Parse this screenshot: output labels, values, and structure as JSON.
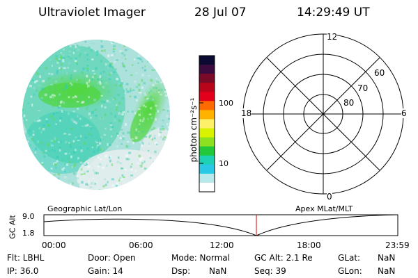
{
  "header": {
    "title": "Ultraviolet Imager",
    "date": "28 Jul 07",
    "time": "14:29:49 UT"
  },
  "colorbar": {
    "unit_label": "photon cm⁻²s⁻¹",
    "ticks": [
      "100",
      "10"
    ],
    "colors": [
      "#0b0a33",
      "#3b0a3f",
      "#7a0a28",
      "#b8051a",
      "#e3001a",
      "#ff6a00",
      "#ffb300",
      "#fff06a",
      "#d8f200",
      "#8ce020",
      "#22c83a",
      "#1fd1b4",
      "#29c9e6",
      "#b8e8ea",
      "#ffffff"
    ]
  },
  "polar": {
    "labels": {
      "top": "12",
      "bottom": "0",
      "left": "18",
      "right": "6"
    },
    "rings": [
      "60",
      "70",
      "80"
    ]
  },
  "timeline": {
    "ylabel": "GC Alt",
    "y_ticks": [
      "9.0",
      "1.8"
    ],
    "left_label": "Geographic Lat/Lon",
    "right_label": "Apex  MLat/MLT",
    "x_ticks": [
      "00:00",
      "06:00",
      "12:00",
      "18:00",
      "23:59"
    ],
    "marker_color": "#cc0000"
  },
  "status": {
    "row1": [
      "Flt: LBHL",
      "Door: Open",
      "Mode: Normal",
      "GC Alt: 2.1 Re",
      "GLat:",
      "NaN"
    ],
    "row2": [
      "IP: 36.0",
      "Gain: 14",
      "Dsp:",
      "NaN",
      "Seq: 39",
      "GLon:",
      "NaN"
    ]
  }
}
